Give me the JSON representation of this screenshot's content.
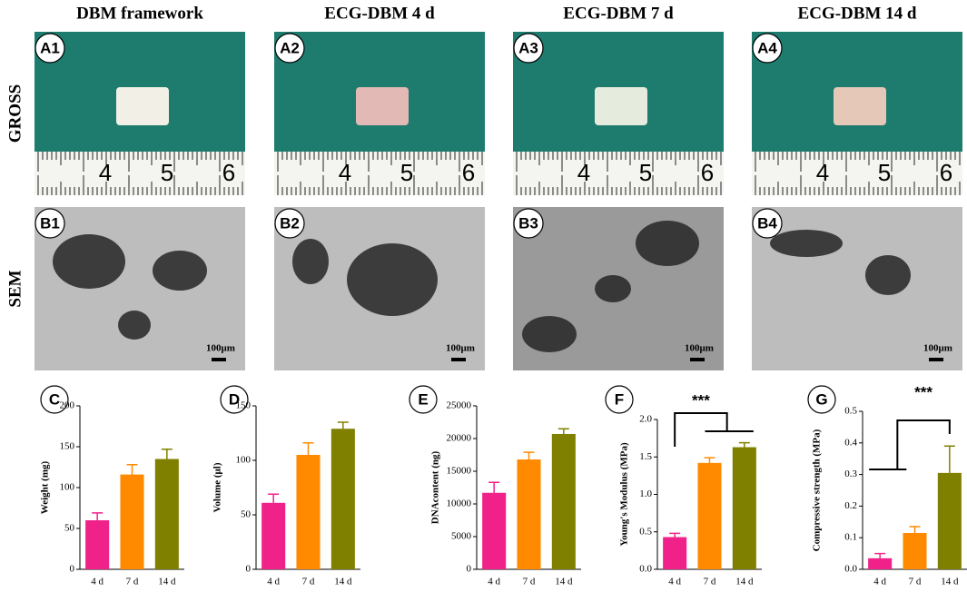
{
  "headers": [
    "DBM framework",
    "ECG-DBM 4 d",
    "ECG-DBM 7 d",
    "ECG-DBM 14 d"
  ],
  "row_labels": [
    "GROSS",
    "SEM"
  ],
  "gross_panels": [
    {
      "label": "A1",
      "ruler": [
        "4",
        "5",
        "6"
      ]
    },
    {
      "label": "A2",
      "ruler": [
        "4",
        "5",
        "6"
      ]
    },
    {
      "label": "A3",
      "ruler": [
        "4",
        "5",
        "6"
      ]
    },
    {
      "label": "A4",
      "ruler": [
        "4",
        "5",
        "6"
      ]
    }
  ],
  "sem_panels": [
    {
      "label": "B1",
      "scale_bar": "100μm"
    },
    {
      "label": "B2",
      "scale_bar": "100μm"
    },
    {
      "label": "B3",
      "scale_bar": "100μm"
    },
    {
      "label": "B4",
      "scale_bar": "100μm"
    }
  ],
  "chart_data": [
    {
      "type": "bar",
      "panel": "C",
      "ylabel": "Weight (mg)",
      "categories": [
        "4 d",
        "7 d",
        "14 d"
      ],
      "values": [
        60,
        116,
        135
      ],
      "errors": [
        9,
        12,
        12
      ],
      "colors": [
        "#f0228a",
        "#ff8a00",
        "#808000"
      ],
      "ylim": [
        0,
        200
      ],
      "yticks": [
        0,
        50,
        100,
        150,
        200
      ]
    },
    {
      "type": "bar",
      "panel": "D",
      "ylabel": "Volume (μl)",
      "categories": [
        "4 d",
        "7 d",
        "14 d"
      ],
      "values": [
        61,
        105,
        129
      ],
      "errors": [
        8,
        11,
        6
      ],
      "colors": [
        "#f0228a",
        "#ff8a00",
        "#808000"
      ],
      "ylim": [
        0,
        150
      ],
      "yticks": [
        0,
        50,
        100,
        150
      ]
    },
    {
      "type": "bar",
      "panel": "E",
      "ylabel": "DNAcontent (ng)",
      "categories": [
        "4 d",
        "7 d",
        "14 d"
      ],
      "values": [
        11700,
        16800,
        20700
      ],
      "errors": [
        1600,
        1100,
        800
      ],
      "colors": [
        "#f0228a",
        "#ff8a00",
        "#808000"
      ],
      "ylim": [
        0,
        25000
      ],
      "yticks": [
        0,
        5000,
        10000,
        15000,
        20000,
        25000
      ]
    },
    {
      "type": "bar",
      "panel": "F",
      "ylabel": "Young's Modulus (MPa)",
      "categories": [
        "4 d",
        "7 d",
        "14 d"
      ],
      "values": [
        0.43,
        1.42,
        1.63
      ],
      "errors": [
        0.05,
        0.07,
        0.06
      ],
      "colors": [
        "#f0228a",
        "#ff8a00",
        "#808000"
      ],
      "ylim": [
        0,
        2
      ],
      "yticks": [
        {
          "value": 0,
          "label": "0.0"
        },
        0.5,
        {
          "value": 1,
          "label": "1.0"
        },
        1.5,
        {
          "value": 2,
          "label": "2.0"
        }
      ],
      "annotation": "***"
    },
    {
      "type": "bar",
      "panel": "G",
      "ylabel": "Compressive strength (MPa)",
      "categories": [
        "4 d",
        "7 d",
        "14 d"
      ],
      "values": [
        0.035,
        0.115,
        0.305
      ],
      "errors": [
        0.015,
        0.02,
        0.085
      ],
      "colors": [
        "#f0228a",
        "#ff8a00",
        "#808000"
      ],
      "ylim": [
        0,
        0.5
      ],
      "yticks": [
        {
          "value": 0,
          "label": "0.0"
        },
        0.1,
        0.2,
        0.3,
        0.4,
        0.5
      ],
      "annotation": "***"
    }
  ]
}
